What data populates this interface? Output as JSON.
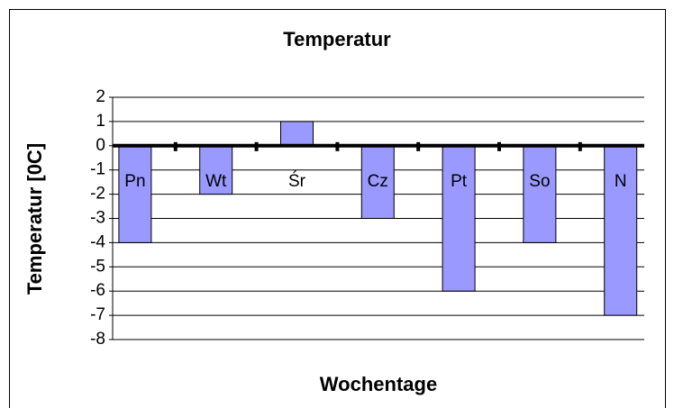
{
  "chart_data": {
    "type": "bar",
    "title": "Temperatur",
    "x_label": "Wochentage",
    "y_label": "Temperatur [0C]",
    "categories": [
      "Pn",
      "Wt",
      "Śr",
      "Cz",
      "Pt",
      "So",
      "N"
    ],
    "values": [
      -4,
      -2,
      1,
      -3,
      -6,
      -4,
      -7
    ],
    "color": "#9999ff",
    "ylim": [
      -8,
      2
    ],
    "yticks": [
      2,
      1,
      0,
      -1,
      -2,
      -3,
      -4,
      -5,
      -6,
      -7,
      -8
    ],
    "grid": true
  }
}
